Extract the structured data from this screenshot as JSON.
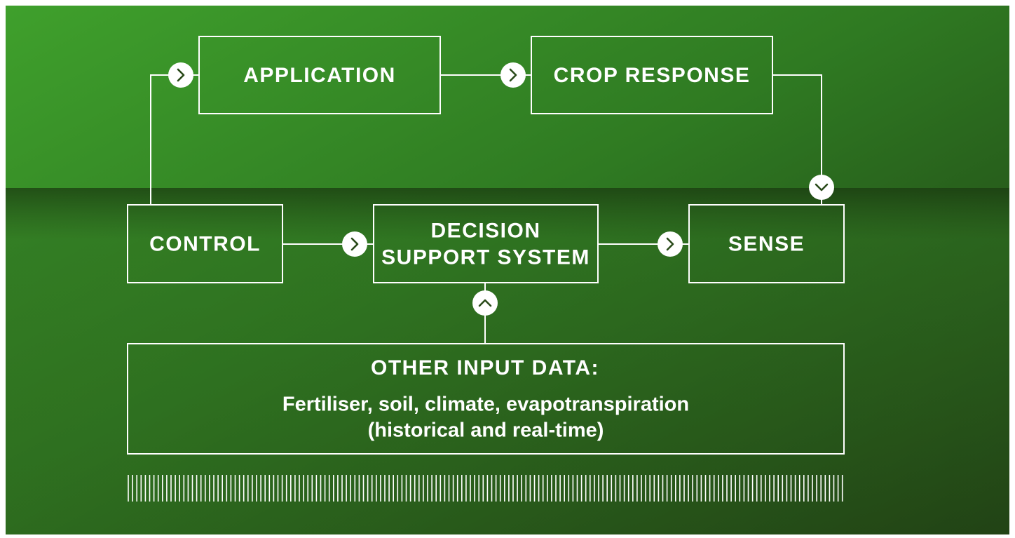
{
  "nodes": [
    {
      "label_lines": [
        "APPLICATION"
      ]
    },
    {
      "label_lines": [
        "CROP RESPONSE"
      ]
    },
    {
      "label_lines": [
        "CONTROL"
      ]
    },
    {
      "label_lines": [
        "DECISION",
        "SUPPORT SYSTEM"
      ]
    },
    {
      "label_lines": [
        "SENSE"
      ]
    }
  ],
  "input_box": {
    "title": "OTHER INPUT DATA:",
    "description_lines": [
      "Fertiliser, soil, climate, evapotranspiration",
      "(historical and real-time)"
    ]
  }
}
